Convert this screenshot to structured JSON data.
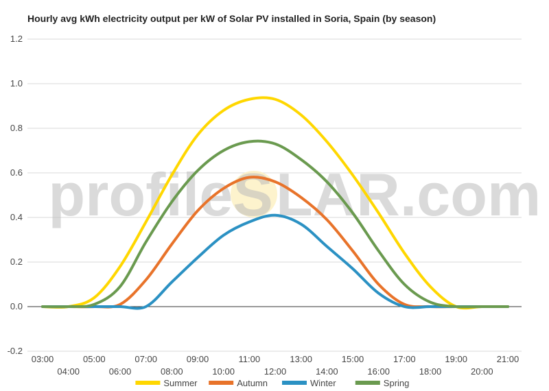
{
  "chart_data": {
    "type": "line",
    "title": "Hourly avg kWh electricity output per kW of Solar PV installed in Soria, Spain (by season)",
    "watermark": {
      "left": "profileS",
      "right": "LAR.com"
    },
    "ylim": [
      -0.2,
      1.2
    ],
    "yticks": [
      -0.2,
      0.0,
      0.2,
      0.4,
      0.6,
      0.8,
      1.0,
      1.2
    ],
    "ytick_labels": [
      "-0.2",
      "0.0",
      "0.2",
      "0.4",
      "0.6",
      "0.8",
      "1.0",
      "1.2"
    ],
    "x": [
      "03:00",
      "04:00",
      "05:00",
      "06:00",
      "07:00",
      "08:00",
      "09:00",
      "10:00",
      "11:00",
      "12:00",
      "13:00",
      "14:00",
      "15:00",
      "16:00",
      "17:00",
      "18:00",
      "19:00",
      "20:00",
      "21:00"
    ],
    "grid": true,
    "legend_position": "bottom",
    "series": [
      {
        "name": "Summer",
        "color": "#ffd700",
        "values": [
          0.0,
          0.0,
          0.04,
          0.18,
          0.38,
          0.59,
          0.77,
          0.88,
          0.93,
          0.93,
          0.86,
          0.74,
          0.59,
          0.42,
          0.24,
          0.09,
          0.0,
          0.0,
          0.0
        ]
      },
      {
        "name": "Autumn",
        "color": "#e8732a",
        "values": [
          0.0,
          0.0,
          0.0,
          0.01,
          0.12,
          0.28,
          0.43,
          0.53,
          0.58,
          0.56,
          0.49,
          0.39,
          0.25,
          0.1,
          0.01,
          0.0,
          0.0,
          0.0,
          0.0
        ]
      },
      {
        "name": "Winter",
        "color": "#2b91c3",
        "values": [
          0.0,
          0.0,
          0.0,
          0.0,
          0.0,
          0.11,
          0.22,
          0.32,
          0.38,
          0.41,
          0.37,
          0.27,
          0.17,
          0.06,
          0.0,
          0.0,
          0.0,
          0.0,
          0.0
        ]
      },
      {
        "name": "Spring",
        "color": "#6a9a4f",
        "values": [
          0.0,
          0.0,
          0.01,
          0.09,
          0.29,
          0.47,
          0.61,
          0.7,
          0.74,
          0.73,
          0.66,
          0.56,
          0.42,
          0.25,
          0.1,
          0.02,
          0.0,
          0.0,
          0.0
        ]
      }
    ]
  }
}
